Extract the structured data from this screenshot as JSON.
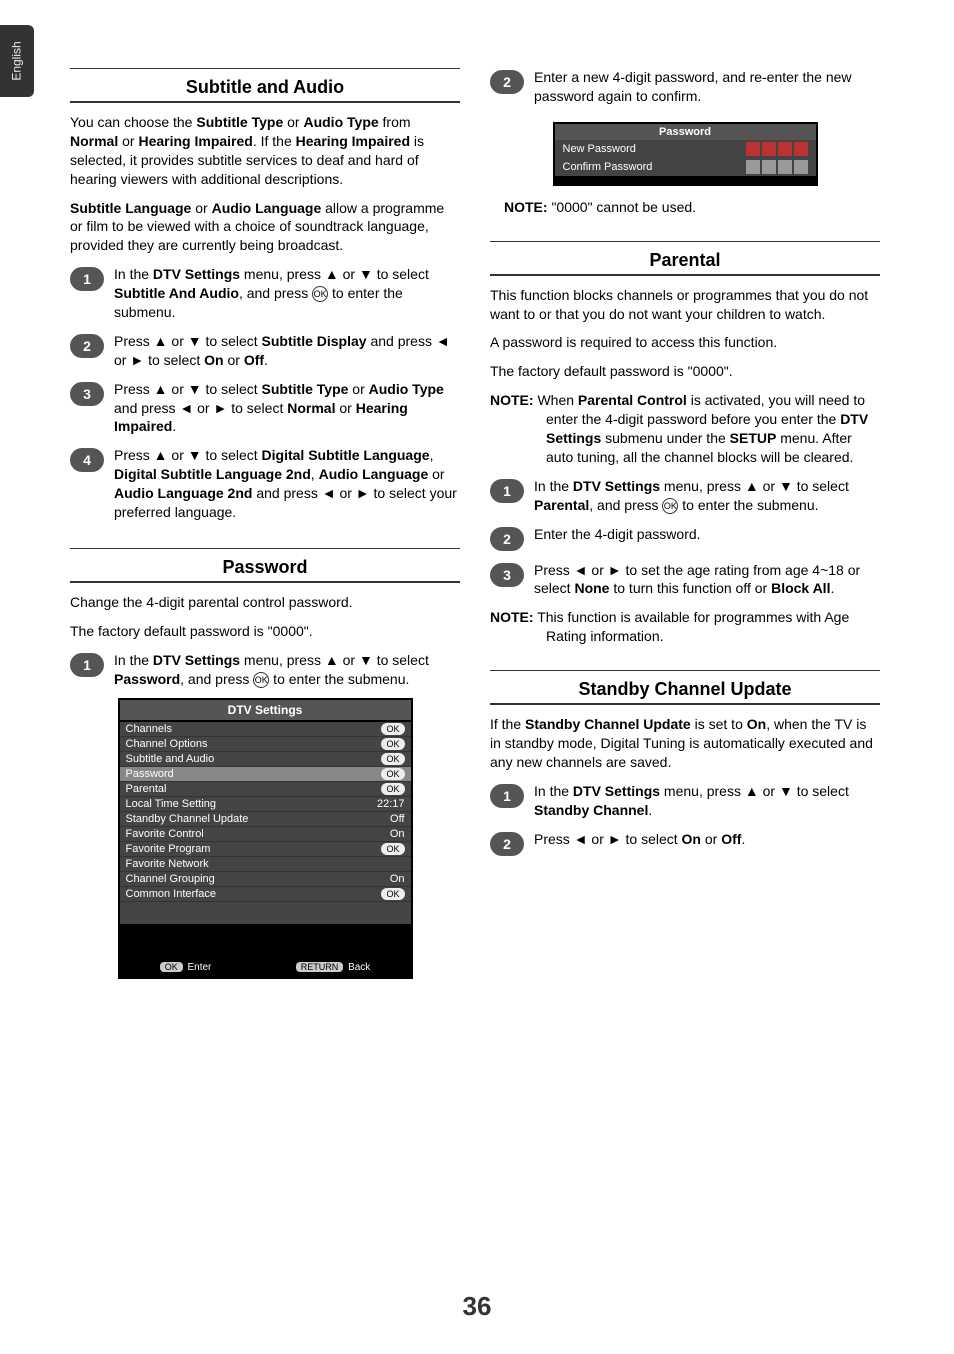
{
  "sideTab": "English",
  "left": {
    "sec1": {
      "title": "Subtitle and Audio",
      "p1_a": "You can choose the ",
      "p1_b": "Subtitle Type",
      "p1_c": " or ",
      "p1_d": "Audio Type",
      "p1_e": " from ",
      "p1_f": "Normal",
      "p1_g": " or ",
      "p1_h": "Hearing Impaired",
      "p1_i": ". If the ",
      "p1_j": "Hearing Impaired",
      "p1_k": " is selected, it provides subtitle services to deaf and hard of hearing viewers with additional descriptions.",
      "p2_a": "Subtitle Language",
      "p2_b": " or ",
      "p2_c": "Audio Language",
      "p2_d": " allow a programme or film to be viewed with a choice of soundtrack language, provided they are currently being broadcast.",
      "s1_a": "In the ",
      "s1_b": "DTV Settings",
      "s1_c": " menu, press ▲ or ▼ to select ",
      "s1_d": "Subtitle And Audio",
      "s1_e": ", and press ",
      "s1_f": " to enter the submenu.",
      "s2_a": "Press ▲ or ▼ to select ",
      "s2_b": "Subtitle Display",
      "s2_c": " and press ◄ or ► to select ",
      "s2_d": "On",
      "s2_e": " or ",
      "s2_f": "Off",
      "s2_g": ".",
      "s3_a": "Press ▲ or ▼ to select ",
      "s3_b": "Subtitle Type",
      "s3_c": " or ",
      "s3_d": "Audio Type",
      "s3_e": " and press ◄ or ► to select ",
      "s3_f": "Normal",
      "s3_g": " or ",
      "s3_h": "Hearing Impaired",
      "s3_i": ".",
      "s4_a": "Press ▲ or ▼ to select ",
      "s4_b": "Digital Subtitle Language",
      "s4_c": ", ",
      "s4_d": "Digital Subtitle Language 2nd",
      "s4_e": ", ",
      "s4_f": "Audio Language",
      "s4_g": " or ",
      "s4_h": "Audio Language 2nd",
      "s4_i": " and press ◄ or ► to select your preferred language."
    },
    "sec2": {
      "title": "Password",
      "p1": "Change the 4-digit parental control password.",
      "p2": "The factory default password is \"0000\".",
      "s1_a": "In the ",
      "s1_b": "DTV Settings",
      "s1_c": " menu, press ▲ or ▼ to select ",
      "s1_d": "Password",
      "s1_e": ", and press ",
      "s1_f": " to enter the submenu."
    },
    "panel": {
      "title": "DTV Settings",
      "rows": [
        {
          "label": "Channels",
          "val": "OK",
          "pill": true
        },
        {
          "label": "Channel Options",
          "val": "OK",
          "pill": true
        },
        {
          "label": "Subtitle and Audio",
          "val": "OK",
          "pill": true
        },
        {
          "label": "Password",
          "val": "OK",
          "pill": true,
          "hl": true
        },
        {
          "label": "Parental",
          "val": "OK",
          "pill": true
        },
        {
          "label": "Local Time Setting",
          "val": "22:17"
        },
        {
          "label": "Standby Channel Update",
          "val": "Off"
        },
        {
          "label": "Favorite Control",
          "val": "On"
        },
        {
          "label": "Favorite Program",
          "val": "OK",
          "pill": true
        },
        {
          "label": "Favorite Network",
          "val": ""
        },
        {
          "label": "Channel Grouping",
          "val": "On"
        },
        {
          "label": "Common Interface",
          "val": "OK",
          "pill": true
        }
      ],
      "footer": {
        "okPill": "OK",
        "enter": "Enter",
        "retPill": "RETURN",
        "back": "Back"
      }
    }
  },
  "right": {
    "s2_a": "Enter a new 4-digit password, and re-enter the new password again to confirm.",
    "pw": {
      "title": "Password",
      "row1": "New Password",
      "row2": "Confirm Password"
    },
    "note1_a": "NOTE:",
    "note1_b": " \"0000\" cannot be used.",
    "sec2": {
      "title": "Parental",
      "p1": "This function blocks channels or programmes that you do not want to or that you do not want your children to watch.",
      "p2": "A password is required to access this function.",
      "p3": "The factory default password is \"0000\".",
      "n_a": "NOTE:",
      "n_b": " When ",
      "n_c": "Parental Control",
      "n_d": " is activated, you will need to enter the 4-digit password before you enter the ",
      "n_e": "DTV Settings",
      "n_f": " submenu under the ",
      "n_g": "SETUP",
      "n_h": " menu. After auto tuning, all the channel blocks will be cleared.",
      "s1_a": "In the ",
      "s1_b": "DTV Settings",
      "s1_c": " menu, press ▲ or ▼ to select ",
      "s1_d": "Parental",
      "s1_e": ", and press ",
      "s1_f": " to enter the submenu.",
      "s2": "Enter the 4-digit password.",
      "s3_a": "Press ◄ or ► to set the age rating from age 4~18 or select ",
      "s3_b": "None",
      "s3_c": " to turn this function off or ",
      "s3_d": "Block All",
      "s3_e": ".",
      "n2_a": "NOTE:",
      "n2_b": " This function is available for programmes with Age Rating information."
    },
    "sec3": {
      "title": "Standby Channel Update",
      "p1_a": "If the ",
      "p1_b": "Standby Channel Update",
      "p1_c": " is set to ",
      "p1_d": "On",
      "p1_e": ", when the TV is in standby mode, Digital Tuning is automatically executed and any new channels are saved.",
      "s1_a": "In the ",
      "s1_b": "DTV Settings",
      "s1_c": " menu, press ▲ or ▼ to select ",
      "s1_d": "Standby Channel",
      "s1_e": ".",
      "s2_a": "Press ◄ or ► to select ",
      "s2_b": "On",
      "s2_c": " or ",
      "s2_d": "Off",
      "s2_e": "."
    }
  },
  "ok": "OK",
  "pageNum": "36"
}
